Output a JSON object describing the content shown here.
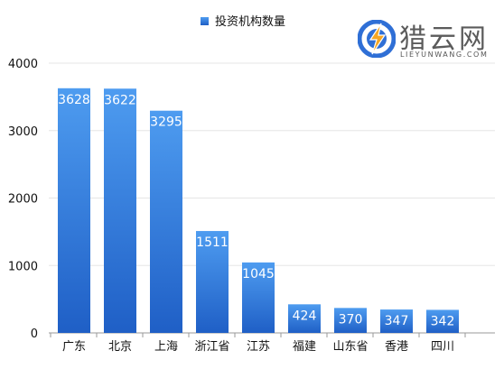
{
  "chart_data": {
    "type": "bar",
    "categories": [
      "广东",
      "北京",
      "上海",
      "浙江省",
      "江苏",
      "福建",
      "山东省",
      "香港",
      "四川"
    ],
    "series": [
      {
        "name": "投资机构数量",
        "values": [
          3628,
          3622,
          3295,
          1511,
          1045,
          424,
          370,
          347,
          342
        ]
      }
    ],
    "ylim": [
      0,
      4000
    ],
    "yticks": [
      0,
      1000,
      2000,
      3000,
      4000
    ],
    "grid": true,
    "legend_position": "top-center",
    "data_labels": true,
    "colors": {
      "bar_top": "#4e9cf0",
      "bar_bottom": "#1f5fc6",
      "grid": "#e6e6e6",
      "axis": "#9a9a9a"
    }
  },
  "watermark": {
    "brand": "猎云网",
    "domain": "LIEYUNWANG.COM",
    "colors": {
      "circle": "#2f6fd6",
      "bolt": "#f5a623",
      "text": "#5b5b5b"
    }
  }
}
